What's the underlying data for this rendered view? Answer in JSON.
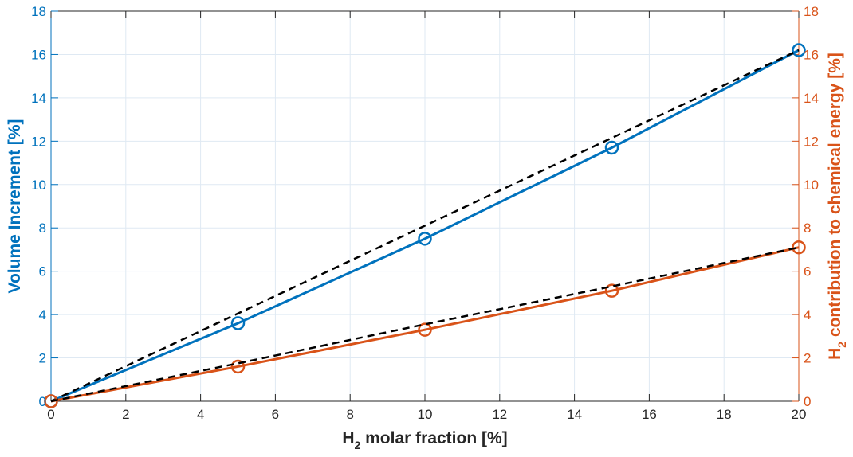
{
  "chart_data": {
    "type": "line",
    "xlabel": {
      "main": "H",
      "sub": "2",
      "rest": " molar fraction [%]"
    },
    "ylabel_left": "Volume Increment [%]",
    "ylabel_right": {
      "main": "H",
      "sub": "2",
      "rest": " contribution to chemical energy [%]"
    },
    "xlim": [
      0,
      20
    ],
    "ylim_left": [
      0,
      18
    ],
    "ylim_right": [
      0,
      18
    ],
    "x_ticks": [
      0,
      2,
      4,
      6,
      8,
      10,
      12,
      14,
      16,
      18,
      20
    ],
    "y_ticks_left": [
      0,
      2,
      4,
      6,
      8,
      10,
      12,
      14,
      16,
      18
    ],
    "y_ticks_right": [
      0,
      2,
      4,
      6,
      8,
      10,
      12,
      14,
      16,
      18
    ],
    "grid": true,
    "colors": {
      "left_axis": "#0072BD",
      "right_axis": "#D95319",
      "fit": "#000000",
      "grid": "#dfe9f3",
      "x_axis": "#262626"
    },
    "series": [
      {
        "axis": "left",
        "style": "solid-with-circles",
        "color": "#0072BD",
        "x": [
          0,
          5,
          10,
          15,
          20
        ],
        "y": [
          0,
          3.6,
          7.5,
          11.7,
          16.2
        ]
      },
      {
        "axis": "left",
        "style": "dashed",
        "color": "#000000",
        "x": [
          0,
          20
        ],
        "y": [
          0,
          16.2
        ]
      },
      {
        "axis": "right",
        "style": "solid-with-circles",
        "color": "#D95319",
        "x": [
          0,
          5,
          10,
          15,
          20
        ],
        "y": [
          0,
          1.6,
          3.3,
          5.1,
          7.1
        ]
      },
      {
        "axis": "right",
        "style": "dashed",
        "color": "#000000",
        "x": [
          0,
          5,
          10,
          15,
          20
        ],
        "y": [
          0,
          1.75,
          3.55,
          5.3,
          7.1
        ]
      }
    ]
  }
}
